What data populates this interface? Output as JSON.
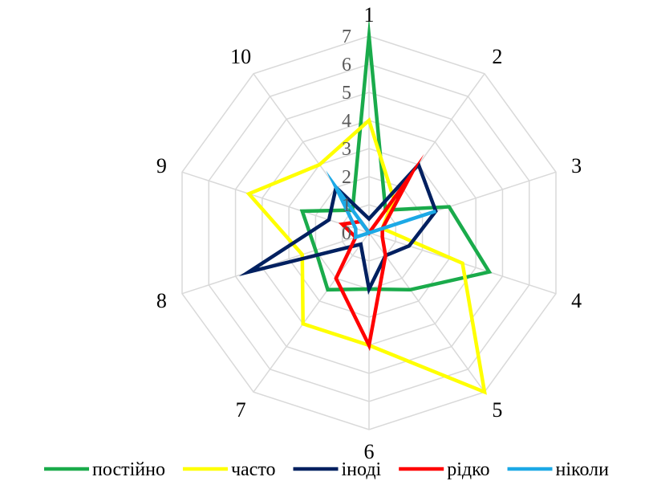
{
  "chart_data": {
    "type": "radar",
    "categories": [
      "1",
      "2",
      "3",
      "4",
      "5",
      "6",
      "7",
      "8",
      "9",
      "10"
    ],
    "rlim": [
      0,
      7
    ],
    "ticks": [
      "0",
      "1",
      "2",
      "3",
      "4",
      "5",
      "6",
      "7"
    ],
    "grid": true,
    "legend_position": "bottom",
    "series": [
      {
        "name": "постійно",
        "color": "#1aab4b",
        "values": [
          7,
          1,
          3,
          4.5,
          2.5,
          2,
          2.5,
          2,
          2.5,
          1
        ]
      },
      {
        "name": "часто",
        "color": "#ffff00",
        "values": [
          4,
          1.5,
          0.5,
          3.5,
          7,
          4,
          4,
          2.5,
          4.5,
          3
        ]
      },
      {
        "name": "іноді",
        "color": "#002060",
        "values": [
          0.5,
          3,
          2.5,
          1.5,
          1,
          2,
          0.5,
          4.5,
          1.5,
          2
        ]
      },
      {
        "name": "рідко",
        "color": "#ff0000",
        "values": [
          0,
          2.5,
          0.5,
          0.5,
          1,
          4,
          2,
          0.5,
          1,
          0.5
        ]
      },
      {
        "name": "ніколи",
        "color": "#1ca9e6",
        "values": [
          0,
          0,
          2.5,
          0,
          0,
          0,
          0,
          0.5,
          0.5,
          2
        ]
      }
    ]
  }
}
